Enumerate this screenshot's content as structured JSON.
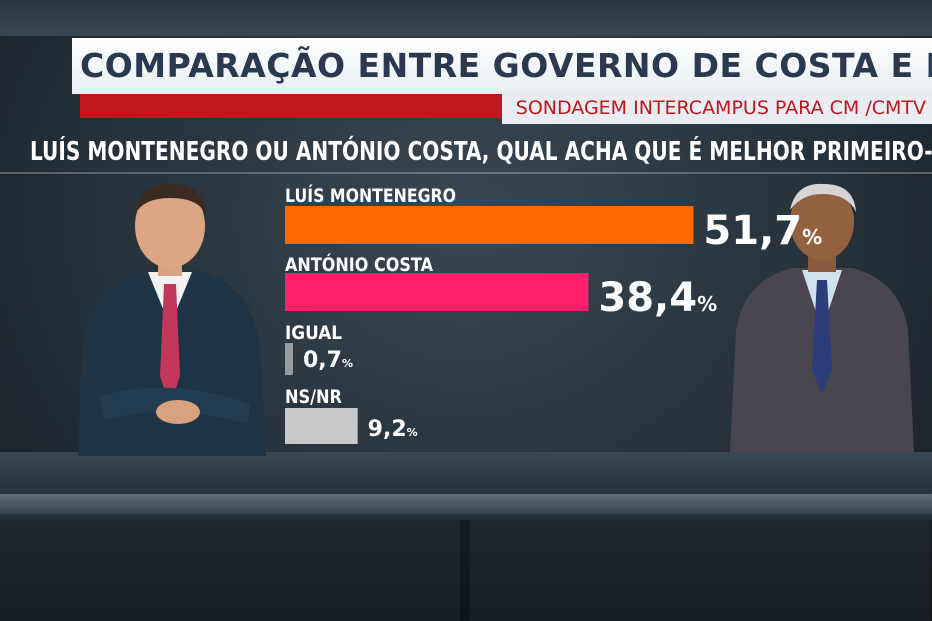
{
  "header": {
    "title": "COMPARAÇÃO ENTRE GOVERNO DE COSTA E MONTENEGRO",
    "subtitle": "SONDAGEM INTERCAMPUS PARA CM /CMTV",
    "question": "LUÍS MONTENEGRO OU ANTÓNIO COSTA, QUAL ACHA QUE É MELHOR PRIMEIRO-MINISTRO?"
  },
  "chart_data": {
    "type": "bar",
    "orientation": "horizontal",
    "categories": [
      "LUÍS MONTENEGRO",
      "ANTÓNIO COSTA",
      "IGUAL",
      "NS/NR"
    ],
    "values": [
      51.7,
      38.4,
      0.7,
      9.2
    ],
    "value_labels": [
      "51,7",
      "38,4",
      "0,7",
      "9,2"
    ],
    "unit": "%",
    "colors": [
      "#ff6a00",
      "#ff1f6a",
      "#9a9a9a",
      "#c8c8c8"
    ],
    "title": "",
    "xlabel": "",
    "ylabel": "",
    "xlim": [
      0,
      100
    ],
    "grid": false,
    "legend": "none"
  },
  "people": {
    "left": "luis-montenegro-portrait",
    "right": "antonio-costa-portrait"
  }
}
